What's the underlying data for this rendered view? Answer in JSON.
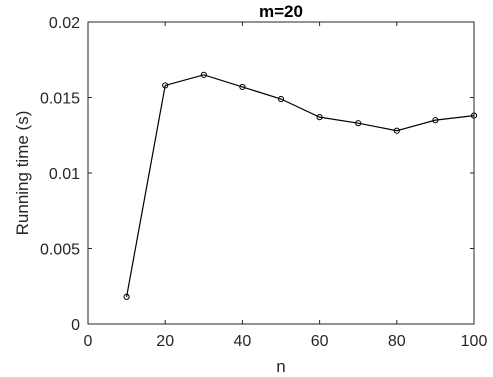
{
  "chart_data": {
    "type": "line",
    "title": "m=20",
    "xlabel": "n",
    "ylabel": "Running time (s)",
    "xlim": [
      0,
      100
    ],
    "ylim": [
      0,
      0.02
    ],
    "xticks": [
      0,
      20,
      40,
      60,
      80,
      100
    ],
    "xtick_labels": [
      "0",
      "20",
      "40",
      "60",
      "80",
      "100"
    ],
    "yticks": [
      0,
      0.005,
      0.01,
      0.015,
      0.02
    ],
    "ytick_labels": [
      "0",
      "0.005",
      "0.01",
      "0.015",
      "0.02"
    ],
    "grid": false,
    "marker": "circle-open",
    "series": [
      {
        "x": [
          10,
          20,
          30,
          40,
          50,
          60,
          70,
          80,
          90,
          100
        ],
        "values": [
          0.0018,
          0.0158,
          0.0165,
          0.0157,
          0.0149,
          0.0137,
          0.0133,
          0.0128,
          0.0135,
          0.0138
        ],
        "color": "#000000"
      }
    ]
  }
}
